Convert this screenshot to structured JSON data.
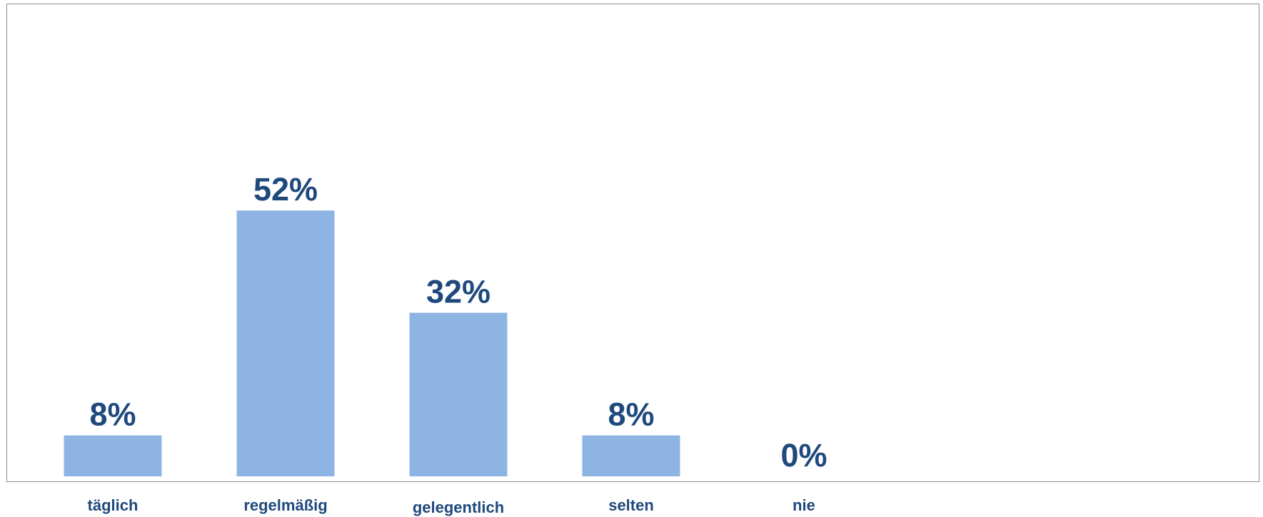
{
  "chart_data": {
    "type": "bar",
    "categories": [
      "täglich",
      "regelmäßig",
      "gelegentlich",
      "selten",
      "nie"
    ],
    "values": [
      8,
      52,
      32,
      8,
      0
    ],
    "value_labels": [
      "8%",
      "52%",
      "32%",
      "8%",
      "0%"
    ],
    "title": "",
    "xlabel": "",
    "ylabel": "",
    "unit": "%",
    "grid": false,
    "legend": "none",
    "colors": {
      "bar": "#8eb4e3",
      "value_text": "#1f497d",
      "category_text": "#1f497d",
      "frame": "#8c8c8c"
    }
  }
}
